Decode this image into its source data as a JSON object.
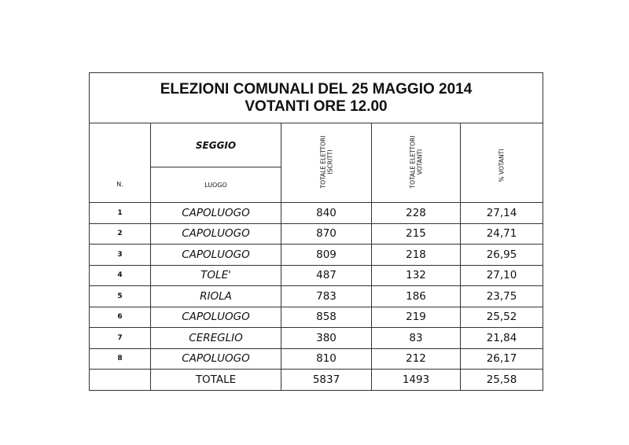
{
  "title": {
    "line1": "ELEZIONI COMUNALI DEL 25 MAGGIO 2014",
    "line2": "VOTANTI ORE 12.00"
  },
  "headers": {
    "seggio": "SEGGIO",
    "n": "N.",
    "luogo": "LUOGO",
    "iscritti": "TOTALE ELETTORI\nISCRITTI",
    "votanti": "TOTALE ELETTORI\nVOTANTI",
    "percent": "% VOTANTI"
  },
  "rows": [
    {
      "n": "1",
      "luogo": "CAPOLUOGO",
      "iscritti": "840",
      "votanti": "228",
      "percent": "27,14"
    },
    {
      "n": "2",
      "luogo": "CAPOLUOGO",
      "iscritti": "870",
      "votanti": "215",
      "percent": "24,71"
    },
    {
      "n": "3",
      "luogo": "CAPOLUOGO",
      "iscritti": "809",
      "votanti": "218",
      "percent": "26,95"
    },
    {
      "n": "4",
      "luogo": "TOLE'",
      "iscritti": "487",
      "votanti": "132",
      "percent": "27,10"
    },
    {
      "n": "5",
      "luogo": "RIOLA",
      "iscritti": "783",
      "votanti": "186",
      "percent": "23,75"
    },
    {
      "n": "6",
      "luogo": "CAPOLUOGO",
      "iscritti": "858",
      "votanti": "219",
      "percent": "25,52"
    },
    {
      "n": "7",
      "luogo": "CEREGLIO",
      "iscritti": "380",
      "votanti": "83",
      "percent": "21,84"
    },
    {
      "n": "8",
      "luogo": "CAPOLUOGO",
      "iscritti": "810",
      "votanti": "212",
      "percent": "26,17"
    }
  ],
  "total": {
    "n": "",
    "luogo": "TOTALE",
    "iscritti": "5837",
    "votanti": "1493",
    "percent": "25,58"
  }
}
